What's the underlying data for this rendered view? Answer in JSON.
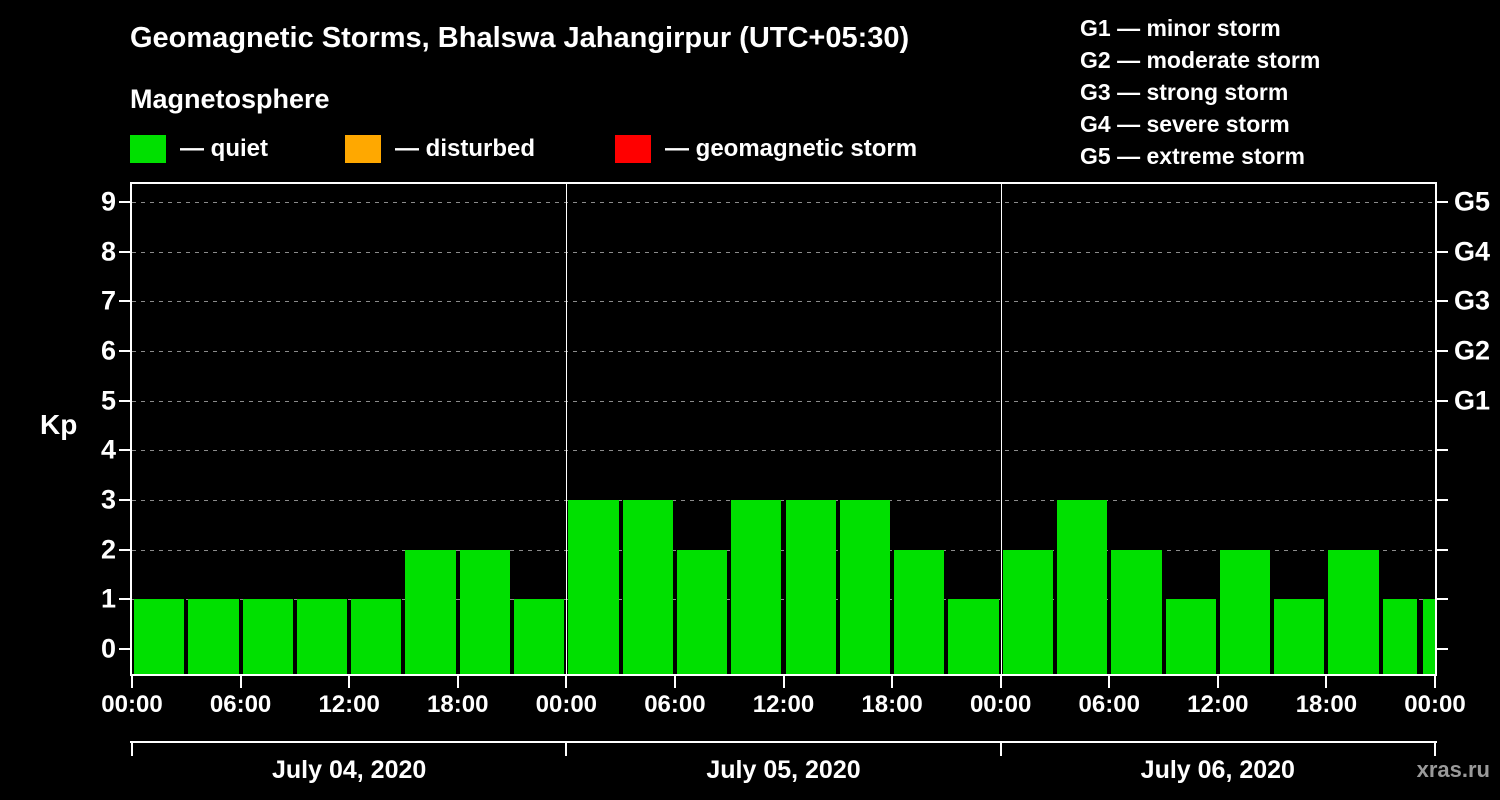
{
  "title": "Geomagnetic Storms, Bhalswa Jahangirpur (UTC+05:30)",
  "subtitle": "Magnetosphere",
  "watermark": "xras.ru",
  "legend": {
    "items": [
      {
        "name": "quiet",
        "label": "— quiet",
        "color": "#00e000"
      },
      {
        "name": "disturbed",
        "label": "— disturbed",
        "color": "#ffa800"
      },
      {
        "name": "geomagnetic-storm",
        "label": "— geomagnetic storm",
        "color": "#ff0000"
      }
    ]
  },
  "g_legend": [
    "G1 — minor storm",
    "G2 — moderate storm",
    "G3 — strong storm",
    "G4 — severe storm",
    "G5 — extreme storm"
  ],
  "chart_data": {
    "type": "bar",
    "title": "Geomagnetic Storms, Bhalswa Jahangirpur (UTC+05:30)",
    "ylabel": "Kp",
    "ylim": [
      0,
      9
    ],
    "yticks": [
      0,
      1,
      2,
      3,
      4,
      5,
      6,
      7,
      8,
      9
    ],
    "grid": true,
    "bar_interval_hours": 3,
    "x_hour_labels": [
      "00:00",
      "06:00",
      "12:00",
      "18:00",
      "00:00",
      "06:00",
      "12:00",
      "18:00",
      "00:00",
      "06:00",
      "12:00",
      "18:00",
      "00:00"
    ],
    "right_scale": [
      {
        "label": "G1",
        "kp": 5
      },
      {
        "label": "G2",
        "kp": 6
      },
      {
        "label": "G3",
        "kp": 7
      },
      {
        "label": "G4",
        "kp": 8
      },
      {
        "label": "G5",
        "kp": 9
      }
    ],
    "days": [
      {
        "label": "July 04, 2020",
        "kp_values": [
          1,
          1,
          1,
          1,
          1,
          2,
          2,
          1
        ]
      },
      {
        "label": "July 05, 2020",
        "kp_values": [
          3,
          3,
          2,
          3,
          3,
          3,
          2,
          1
        ]
      },
      {
        "label": "July 06, 2020",
        "kp_values": [
          2,
          3,
          2,
          1,
          2,
          1,
          2,
          1
        ]
      }
    ],
    "next_interval_partial_kp": 1,
    "day_boundary_hours": [
      24,
      48
    ],
    "legend_position": "top"
  }
}
